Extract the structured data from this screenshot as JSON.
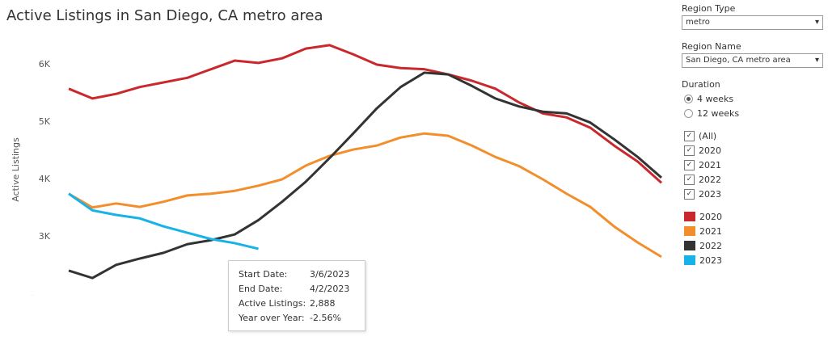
{
  "chart_data": {
    "type": "line",
    "title": "Active Listings in San Diego, CA metro area",
    "y_label": "Active Listings",
    "categories": [
      null,
      null,
      null,
      null,
      null,
      null,
      null,
      null,
      null,
      null,
      null,
      null,
      null,
      null,
      null,
      null,
      null,
      null,
      null,
      null,
      null,
      null,
      null,
      null,
      null,
      null
    ],
    "ylim": [
      2000,
      6500
    ],
    "yticks": [
      {
        "value": 3000,
        "label": "3K"
      },
      {
        "value": 4000,
        "label": "4K"
      },
      {
        "value": 5000,
        "label": "5K"
      },
      {
        "value": 6000,
        "label": "6K"
      }
    ],
    "series": [
      {
        "name": "2020",
        "color": "#c9282d",
        "values": [
          5580,
          5410,
          5490,
          5610,
          5690,
          5770,
          5920,
          6070,
          6030,
          6110,
          6280,
          6340,
          6180,
          6000,
          5940,
          5920,
          5830,
          5720,
          5580,
          5340,
          5150,
          5080,
          4900,
          4590,
          4310,
          3940
        ]
      },
      {
        "name": "2021",
        "color": "#f28e2b",
        "values": [
          3750,
          3510,
          3580,
          3520,
          3610,
          3720,
          3750,
          3800,
          3890,
          4000,
          4240,
          4410,
          4520,
          4590,
          4730,
          4800,
          4760,
          4590,
          4390,
          4230,
          4000,
          3750,
          3520,
          3180,
          2900,
          2650
        ]
      },
      {
        "name": "2022",
        "color": "#333333",
        "values": [
          2410,
          2280,
          2510,
          2620,
          2720,
          2870,
          2940,
          3040,
          3290,
          3610,
          3960,
          4370,
          4800,
          5240,
          5610,
          5860,
          5830,
          5630,
          5410,
          5270,
          5180,
          5150,
          4990,
          4700,
          4390,
          4030
        ]
      },
      {
        "name": "2023",
        "color": "#17b2e8",
        "values": [
          3750,
          3460,
          3380,
          3320,
          3180,
          3070,
          2960,
          2888,
          2790,
          null,
          null,
          null,
          null,
          null,
          null,
          null,
          null,
          null,
          null,
          null,
          null,
          null,
          null,
          null,
          null,
          null
        ]
      }
    ]
  },
  "controls": {
    "region_type": {
      "label": "Region Type",
      "value": "metro"
    },
    "region_name": {
      "label": "Region Name",
      "value": "San Diego, CA metro area"
    },
    "duration": {
      "label": "Duration",
      "options": [
        "4 weeks",
        "12 weeks"
      ]
    },
    "years": [
      "(All)",
      "2020",
      "2021",
      "2022",
      "2023"
    ]
  },
  "tooltip": {
    "rows": [
      [
        "Start Date:",
        "3/6/2023"
      ],
      [
        "End Date:",
        "4/2/2023"
      ],
      [
        "Active Listings:",
        "2,888"
      ],
      [
        "Year over Year:",
        "-2.56%"
      ]
    ]
  }
}
